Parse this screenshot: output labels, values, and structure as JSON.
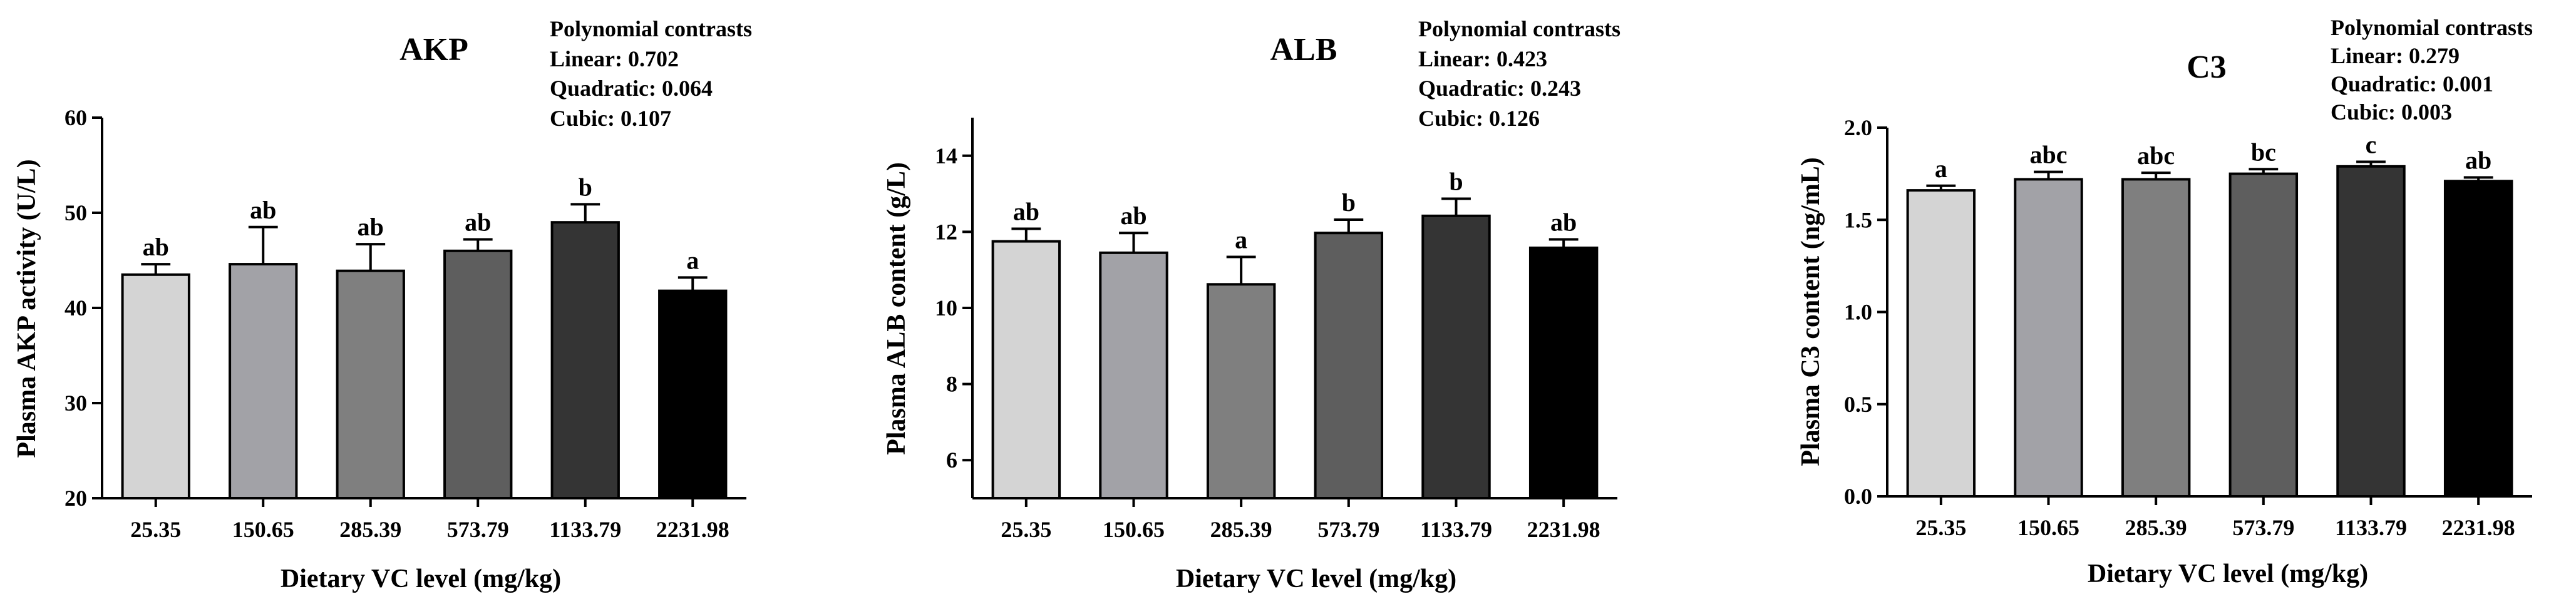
{
  "chart_data": [
    {
      "type": "bar",
      "title": "AKP",
      "ylabel": "Plasma AKP activity (U/L)",
      "xlabel": "Dietary VC level (mg/kg)",
      "categories": [
        "25.35",
        "150.65",
        "285.39",
        "573.79",
        "1133.79",
        "2231.98"
      ],
      "values": [
        43.5,
        44.6,
        43.9,
        46.0,
        49.0,
        41.8
      ],
      "errors": [
        1.1,
        3.9,
        2.8,
        1.2,
        1.9,
        1.4
      ],
      "letters": [
        "ab",
        "ab",
        "ab",
        "ab",
        "b",
        "a"
      ],
      "ylim": [
        20,
        60
      ],
      "yticks": [
        "20",
        "30",
        "40",
        "50",
        "60"
      ],
      "stats": {
        "heading": "Polynomial contrasts",
        "linear": "Linear: 0.702",
        "quadratic": "Quadratic: 0.064",
        "cubic": "Cubic: 0.107"
      },
      "colors": [
        "#d4d4d4",
        "#a2a2a7",
        "#7f7f7f",
        "#5e5e5e",
        "#343434",
        "#000000"
      ]
    },
    {
      "type": "bar",
      "title": "ALB",
      "ylabel": "Plasma ALB content (g/L)",
      "xlabel": "Dietary VC level (mg/kg)",
      "categories": [
        "25.35",
        "150.65",
        "285.39",
        "573.79",
        "1133.79",
        "2231.98"
      ],
      "values": [
        11.75,
        11.45,
        10.62,
        11.97,
        12.42,
        11.58
      ],
      "errors": [
        0.33,
        0.52,
        0.72,
        0.35,
        0.45,
        0.22
      ],
      "letters": [
        "ab",
        "ab",
        "a",
        "b",
        "b",
        "ab"
      ],
      "ylim": [
        5,
        15
      ],
      "yticks": [
        "6",
        "8",
        "10",
        "12",
        "14"
      ],
      "stats": {
        "heading": "Polynomial contrasts",
        "linear": "Linear: 0.423",
        "quadratic": "Quadratic: 0.243",
        "cubic": "Cubic: 0.126"
      },
      "colors": [
        "#d4d4d4",
        "#a2a2a7",
        "#7f7f7f",
        "#5e5e5e",
        "#343434",
        "#000000"
      ]
    },
    {
      "type": "bar",
      "title": "C3",
      "ylabel": "Plasma C3 content (ng/mL)",
      "xlabel": "Dietary VC level (mg/kg)",
      "categories": [
        "25.35",
        "150.65",
        "285.39",
        "573.79",
        "1133.79",
        "2231.98"
      ],
      "values": [
        1.66,
        1.72,
        1.72,
        1.75,
        1.79,
        1.71
      ],
      "errors": [
        0.025,
        0.04,
        0.035,
        0.025,
        0.025,
        0.02
      ],
      "letters": [
        "a",
        "abc",
        "abc",
        "bc",
        "c",
        "ab"
      ],
      "ylim": [
        0,
        2.0
      ],
      "yticks": [
        "0.0",
        "0.5",
        "1.0",
        "1.5",
        "2.0"
      ],
      "stats": {
        "heading": "Polynomial contrasts",
        "linear": "Linear: 0.279",
        "quadratic": "Quadratic: 0.001",
        "cubic": "Cubic: 0.003"
      },
      "colors": [
        "#d4d4d4",
        "#a2a2a7",
        "#7f7f7f",
        "#5e5e5e",
        "#343434",
        "#000000"
      ]
    }
  ]
}
